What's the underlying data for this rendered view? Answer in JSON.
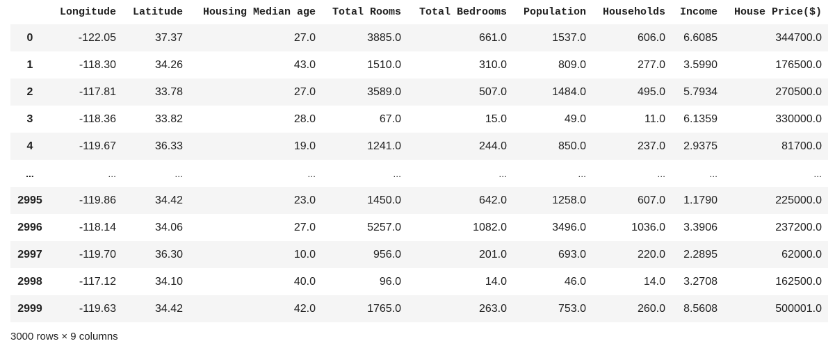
{
  "table": {
    "columns": [
      "Longitude",
      "Latitude",
      "Housing Median age",
      "Total Rooms",
      "Total Bedrooms",
      "Population",
      "Households",
      "Income",
      "House Price($)"
    ],
    "rows": [
      {
        "index": "0",
        "cells": [
          "-122.05",
          "37.37",
          "27.0",
          "3885.0",
          "661.0",
          "1537.0",
          "606.0",
          "6.6085",
          "344700.0"
        ]
      },
      {
        "index": "1",
        "cells": [
          "-118.30",
          "34.26",
          "43.0",
          "1510.0",
          "310.0",
          "809.0",
          "277.0",
          "3.5990",
          "176500.0"
        ]
      },
      {
        "index": "2",
        "cells": [
          "-117.81",
          "33.78",
          "27.0",
          "3589.0",
          "507.0",
          "1484.0",
          "495.0",
          "5.7934",
          "270500.0"
        ]
      },
      {
        "index": "3",
        "cells": [
          "-118.36",
          "33.82",
          "28.0",
          "67.0",
          "15.0",
          "49.0",
          "11.0",
          "6.1359",
          "330000.0"
        ]
      },
      {
        "index": "4",
        "cells": [
          "-119.67",
          "36.33",
          "19.0",
          "1241.0",
          "244.0",
          "850.0",
          "237.0",
          "2.9375",
          "81700.0"
        ]
      },
      {
        "index": "...",
        "cells": [
          "...",
          "...",
          "...",
          "...",
          "...",
          "...",
          "...",
          "...",
          "..."
        ]
      },
      {
        "index": "2995",
        "cells": [
          "-119.86",
          "34.42",
          "23.0",
          "1450.0",
          "642.0",
          "1258.0",
          "607.0",
          "1.1790",
          "225000.0"
        ]
      },
      {
        "index": "2996",
        "cells": [
          "-118.14",
          "34.06",
          "27.0",
          "5257.0",
          "1082.0",
          "3496.0",
          "1036.0",
          "3.3906",
          "237200.0"
        ]
      },
      {
        "index": "2997",
        "cells": [
          "-119.70",
          "36.30",
          "10.0",
          "956.0",
          "201.0",
          "693.0",
          "220.0",
          "2.2895",
          "62000.0"
        ]
      },
      {
        "index": "2998",
        "cells": [
          "-117.12",
          "34.10",
          "40.0",
          "96.0",
          "14.0",
          "46.0",
          "14.0",
          "3.2708",
          "162500.0"
        ]
      },
      {
        "index": "2999",
        "cells": [
          "-119.63",
          "34.42",
          "42.0",
          "1765.0",
          "263.0",
          "753.0",
          "260.0",
          "8.5608",
          "500001.0"
        ]
      }
    ]
  },
  "shape_note": "3000 rows × 9 columns",
  "colors": {
    "stripe": "#f5f5f5",
    "text": "#212121",
    "background": "#ffffff"
  }
}
